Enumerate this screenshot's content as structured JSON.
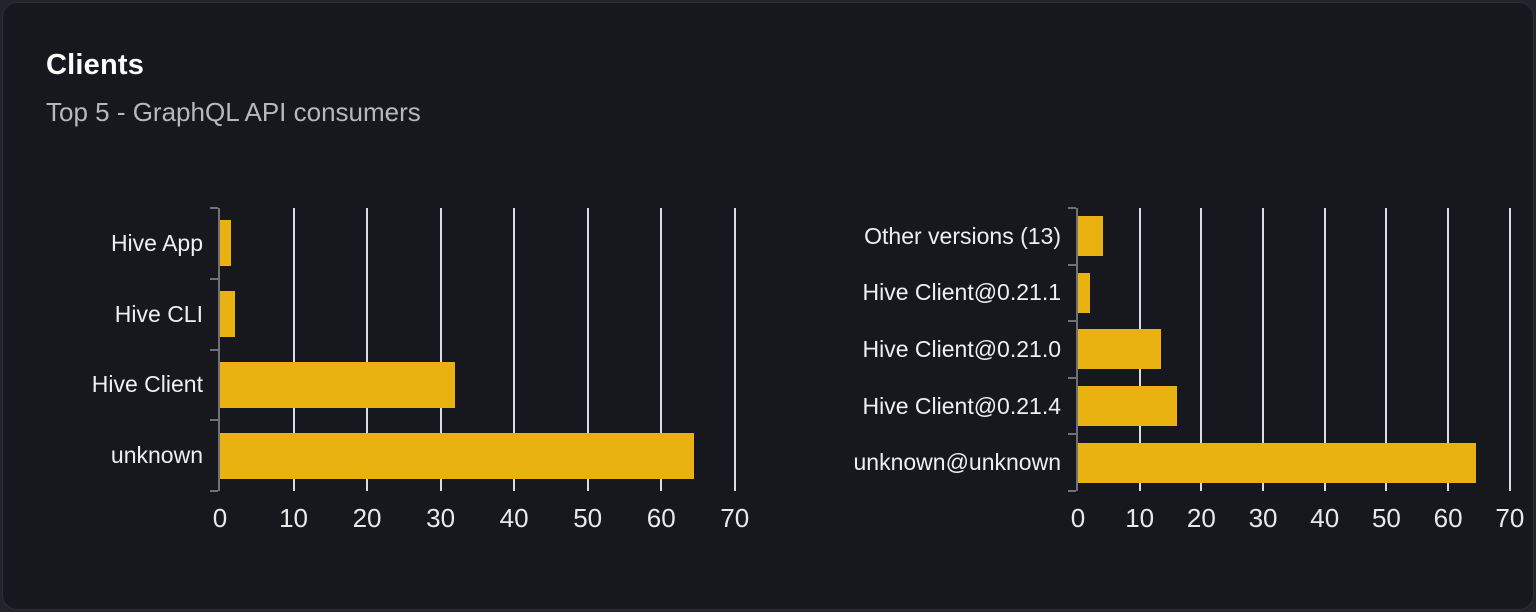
{
  "panel": {
    "title": "Clients",
    "subtitle": "Top 5 - GraphQL API consumers"
  },
  "colors": {
    "page_bg": "#222429",
    "panel_bg": "#16181d",
    "panel_border": "#2c2f36",
    "bar": "#eab211",
    "gridline": "#dadce4",
    "axis": "#6e7176",
    "title_text": "#fcfcfd",
    "subtitle_text": "#b6b8bc",
    "category_label_text": "#efeff1",
    "tick_label_text": "#e8e9eb"
  },
  "chart_data": [
    {
      "type": "bar",
      "orientation": "horizontal",
      "title": "",
      "xlabel": "",
      "ylabel": "",
      "categories": [
        "Hive App",
        "Hive CLI",
        "Hive Client",
        "unknown"
      ],
      "values": [
        1.5,
        2,
        32,
        64.5
      ],
      "xlim": [
        0,
        71.8
      ],
      "xticks": [
        0,
        10,
        20,
        30,
        40,
        50,
        60,
        70
      ],
      "grid": true,
      "legend": "none"
    },
    {
      "type": "bar",
      "orientation": "horizontal",
      "title": "",
      "xlabel": "",
      "ylabel": "",
      "categories": [
        "Other versions (13)",
        "Hive Client@0.21.1",
        "Hive Client@0.21.0",
        "Hive Client@0.21.4",
        "unknown@unknown"
      ],
      "values": [
        4,
        2,
        13.5,
        16,
        64.5
      ],
      "xlim": [
        0,
        71
      ],
      "xticks": [
        0,
        10,
        20,
        30,
        40,
        50,
        60,
        70
      ],
      "grid": true,
      "legend": "none"
    }
  ]
}
